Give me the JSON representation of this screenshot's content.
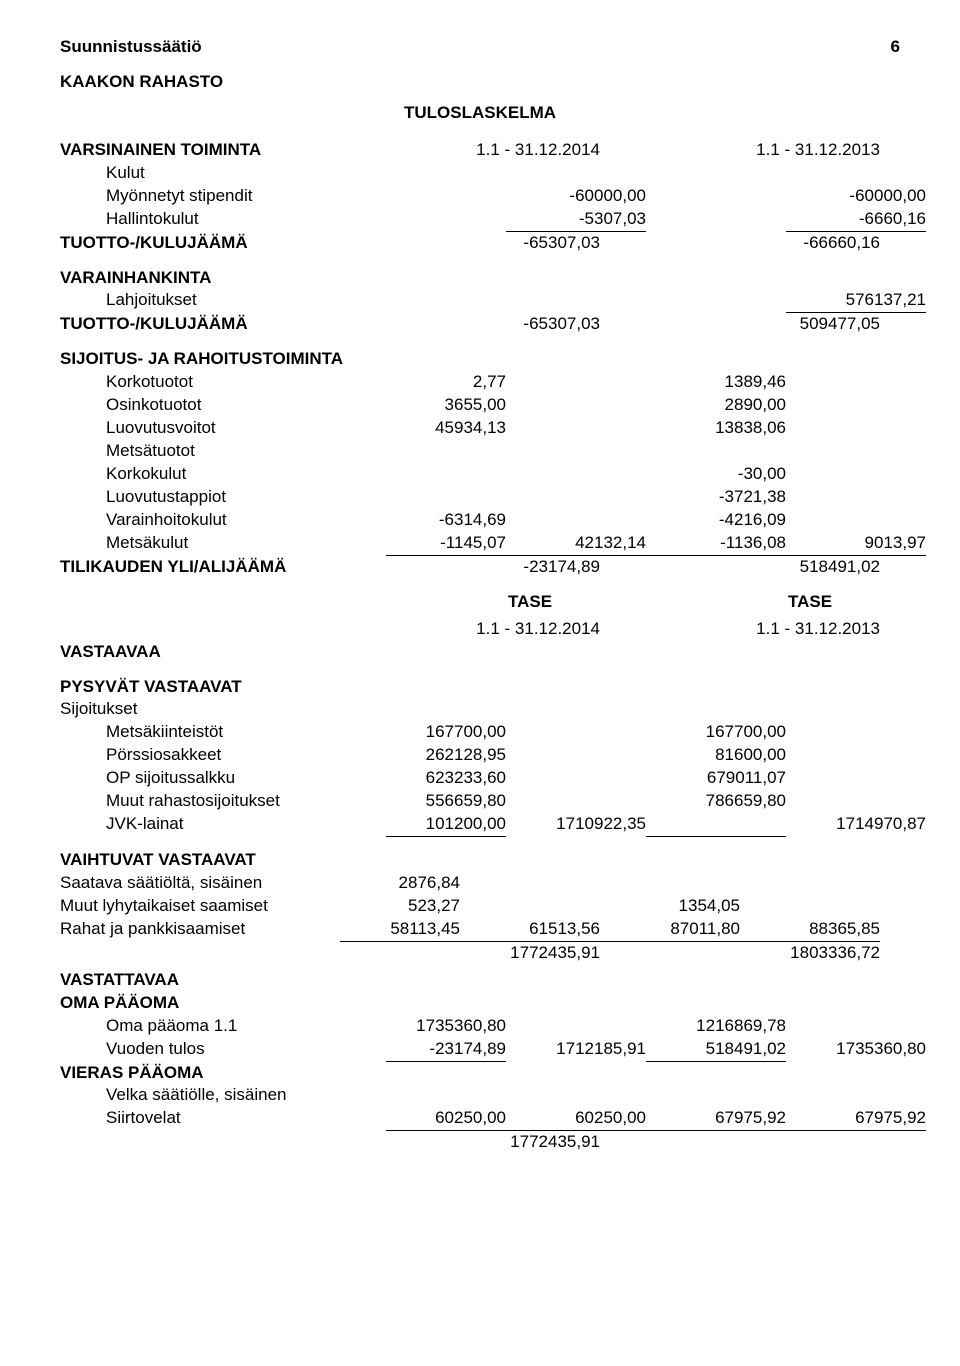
{
  "header": {
    "org": "Suunnistussäätiö",
    "page_no": "6",
    "fund": "KAAKON RAHASTO",
    "tulos_title": "TULOSLASKELMA",
    "tase_title": "TASE"
  },
  "periods": {
    "cur": "1.1 - 31.12.2014",
    "prev": "1.1 - 31.12.2013"
  },
  "tulos": {
    "varsinainen": "VARSINAINEN TOIMINTA",
    "kulut": "Kulut",
    "myonnetyt": "Myönnetyt stipendit",
    "myonnetyt_cur": "-60000,00",
    "myonnetyt_prev": "-60000,00",
    "hallinto": "Hallintokulut",
    "hallinto_cur": "-5307,03",
    "hallinto_prev": "-6660,16",
    "tuotto1": "TUOTTO-/KULUJÄÄMÄ",
    "tuotto1_cur": "-65307,03",
    "tuotto1_prev": "-66660,16",
    "varain": "VARAINHANKINTA",
    "lahj": "Lahjoitukset",
    "lahj_prev": "576137,21",
    "tuotto2": "TUOTTO-/KULUJÄÄMÄ",
    "tuotto2_cur": "-65307,03",
    "tuotto2_prev": "509477,05",
    "sijr": "SIJOITUS- JA RAHOITUSTOIMINTA",
    "korkot": "Korkotuotot",
    "korkot_c": "2,77",
    "korkot_p": "1389,46",
    "osinkot": "Osinkotuotot",
    "osinkot_c": "3655,00",
    "osinkot_p": "2890,00",
    "luovv": "Luovutusvoitot",
    "luovv_c": "45934,13",
    "luovv_p": "13838,06",
    "metsat": "Metsätuotot",
    "korkk": "Korkokulut",
    "korkk_p": "-30,00",
    "luovt": "Luovutustappiot",
    "luovt_p": "-3721,38",
    "varhk": "Varainhoitokulut",
    "varhk_c": "-6314,69",
    "varhk_p": "-4216,09",
    "metsak": "Metsäkulut",
    "metsak_c1": "-1145,07",
    "metsak_c2": "42132,14",
    "metsak_p1": "-1136,08",
    "metsak_p2": "9013,97",
    "tili": "TILIKAUDEN YLI/ALIJÄÄMÄ",
    "tili_c": "-23174,89",
    "tili_p": "518491,02"
  },
  "tase": {
    "vastaavaa": "VASTAAVAA",
    "pysyvat": "PYSYVÄT VASTAAVAT",
    "sij": "Sijoitukset",
    "met": "Metsäkiinteistöt",
    "met_c": "167700,00",
    "met_p": "167700,00",
    "por": "Pörssiosakkeet",
    "por_c": "262128,95",
    "por_p": "81600,00",
    "op": "OP sijoitussalkku",
    "op_c": "623233,60",
    "op_p": "679011,07",
    "muu": "Muut rahastosijoitukset",
    "muu_c": "556659,80",
    "muu_p": "786659,80",
    "jvk": "JVK-lainat",
    "jvk_c1": "101200,00",
    "jvk_c2": "1710922,35",
    "jvk_p2": "1714970,87",
    "vaiht": "VAIHTUVAT VASTAAVAT",
    "saat": "Saatava säätiöltä, sisäinen",
    "saat_c": "2876,84",
    "mls": "Muut lyhytaikaiset saamiset",
    "mls_c": "523,27",
    "mls_p": "1354,05",
    "rahat": "Rahat ja pankkisaamiset",
    "rahat_c1": "58113,45",
    "rahat_c2": "61513,56",
    "rahat_p1": "87011,80",
    "rahat_p2": "88365,85",
    "tot_c": "1772435,91",
    "tot_p": "1803336,72",
    "vastattavaa": "VASTATTAVAA",
    "oma": "OMA PÄÄOMA",
    "omap": "Oma pääoma 1.1",
    "omap_c": "1735360,80",
    "omap_p": "1216869,78",
    "vt": "Vuoden tulos",
    "vt_c1": "-23174,89",
    "vt_c2": "1712185,91",
    "vt_p1": "518491,02",
    "vt_p2": "1735360,80",
    "vieras": "VIERAS PÄÄOMA",
    "velka": "Velka säätiölle, sisäinen",
    "siirto": "Siirtovelat",
    "siirto_c1": "60250,00",
    "siirto_c2": "60250,00",
    "siirto_p1": "67975,92",
    "siirto_p2": "67975,92",
    "btot_c": "1772435,91"
  },
  "style": {
    "font_family": "Arial",
    "text_color": "#000000",
    "background": "#ffffff",
    "underline_color": "#000000",
    "base_fontsize_pt": 13,
    "bold_weight": 700
  }
}
